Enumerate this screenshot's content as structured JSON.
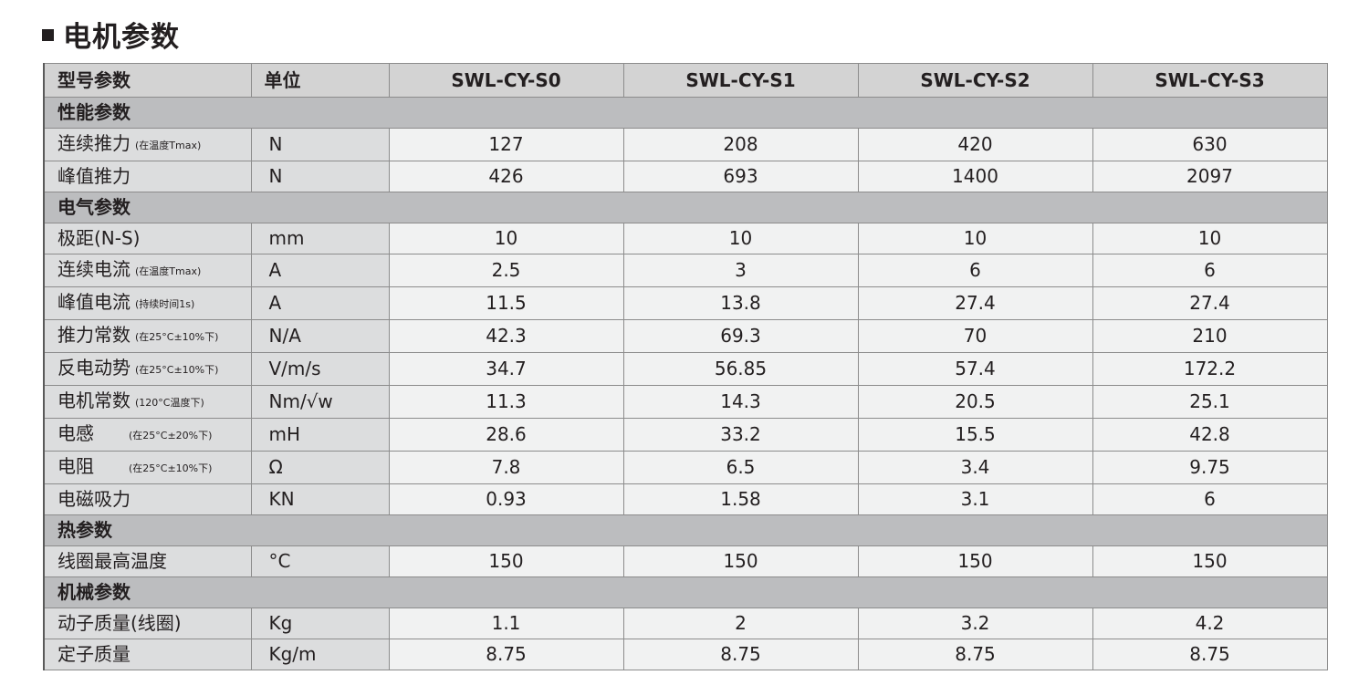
{
  "page": {
    "title": "电机参数"
  },
  "table": {
    "header": {
      "param": "型号参数",
      "unit": "单位",
      "models": [
        "SWL-CY-S0",
        "SWL-CY-S1",
        "SWL-CY-S2",
        "SWL-CY-S3"
      ]
    },
    "sections": [
      {
        "name": "性能参数",
        "rows": [
          {
            "param": "连续推力",
            "note": "(在温度Tmax)",
            "unit": "N",
            "values": [
              "127",
              "208",
              "420",
              "630"
            ]
          },
          {
            "param": "峰值推力",
            "note": "",
            "unit": "N",
            "values": [
              "426",
              "693",
              "1400",
              "2097"
            ]
          }
        ]
      },
      {
        "name": "电气参数",
        "rows": [
          {
            "param": "极距(N-S)",
            "note": "",
            "unit": "mm",
            "values": [
              "10",
              "10",
              "10",
              "10"
            ]
          },
          {
            "param": "连续电流",
            "note": "(在温度Tmax)",
            "unit": "A",
            "values": [
              "2.5",
              "3",
              "6",
              "6"
            ]
          },
          {
            "param": "峰值电流",
            "note": "(持续时间1s)",
            "unit": "A",
            "values": [
              "11.5",
              "13.8",
              "27.4",
              "27.4"
            ]
          },
          {
            "param": "推力常数",
            "note": "(在25°C±10%下)",
            "unit": "N/A",
            "values": [
              "42.3",
              "69.3",
              "70",
              "210"
            ]
          },
          {
            "param": "反电动势",
            "note": "(在25°C±10%下)",
            "unit": "V/m/s",
            "values": [
              "34.7",
              "56.85",
              "57.4",
              "172.2"
            ]
          },
          {
            "param": "电机常数",
            "note": "(120°C温度下)",
            "unit": "Nm/√w",
            "values": [
              "11.3",
              "14.3",
              "20.5",
              "25.1"
            ]
          },
          {
            "param": "电感",
            "note": "(在25°C±20%下)",
            "unit": "mH",
            "values": [
              "28.6",
              "33.2",
              "15.5",
              "42.8"
            ]
          },
          {
            "param": "电阻",
            "note": "(在25°C±10%下)",
            "unit": "Ω",
            "values": [
              "7.8",
              "6.5",
              "3.4",
              "9.75"
            ]
          },
          {
            "param": "电磁吸力",
            "note": "",
            "unit": "KN",
            "values": [
              "0.93",
              "1.58",
              "3.1",
              "6"
            ]
          }
        ]
      },
      {
        "name": "热参数",
        "rows": [
          {
            "param": "线圈最高温度",
            "note": "",
            "unit": "°C",
            "values": [
              "150",
              "150",
              "150",
              "150"
            ]
          }
        ]
      },
      {
        "name": "机械参数",
        "rows": [
          {
            "param": "动子质量(线圈)",
            "note": "",
            "unit": "Kg",
            "values": [
              "1.1",
              "2",
              "3.2",
              "4.2"
            ]
          },
          {
            "param": "定子质量",
            "note": "",
            "unit": "Kg/m",
            "values": [
              "8.75",
              "8.75",
              "8.75",
              "8.75"
            ]
          }
        ]
      }
    ]
  }
}
